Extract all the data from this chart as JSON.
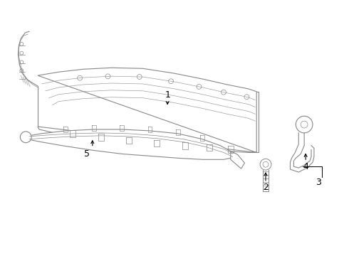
{
  "bg_color": "#ffffff",
  "line_color": "#888888",
  "dark_color": "#444444",
  "label_color": "#000000",
  "fig_width": 4.9,
  "fig_height": 3.6,
  "dpi": 100
}
